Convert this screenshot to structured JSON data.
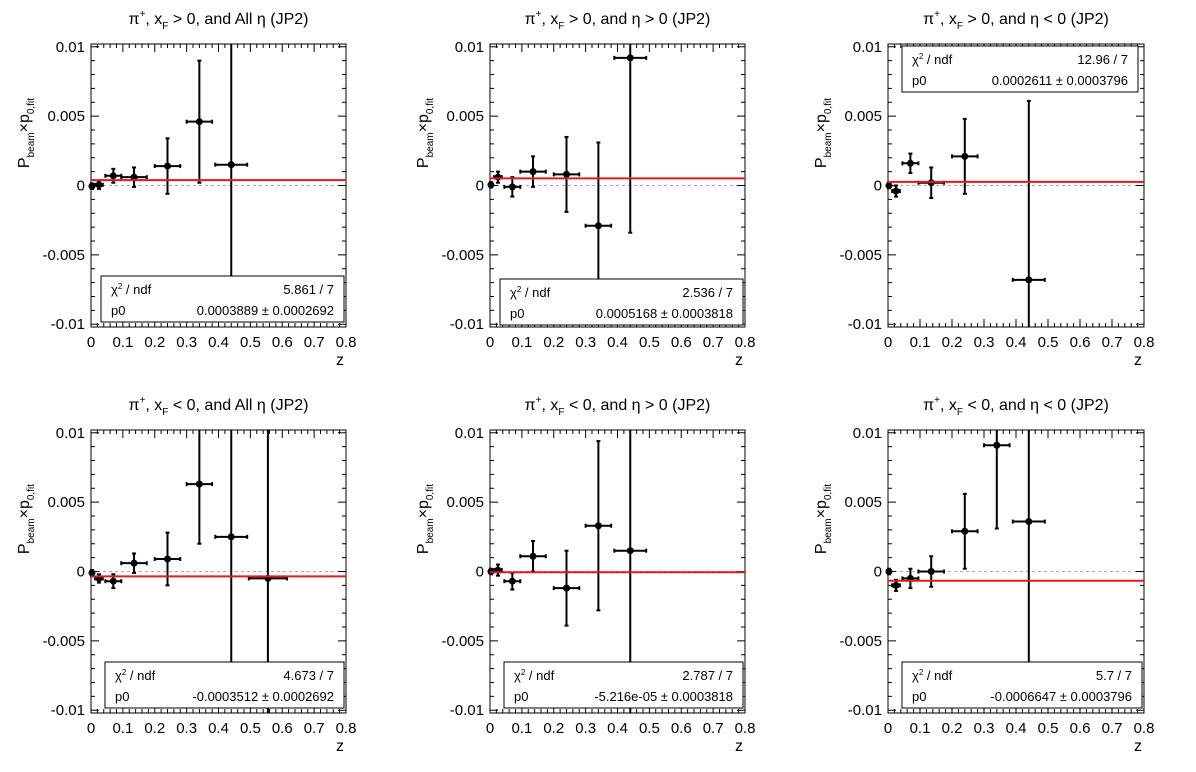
{
  "chart_data": [
    {
      "type": "scatter",
      "title_parts": [
        "π",
        "+",
        ", x",
        "F",
        " > 0, and All η (JP2)"
      ],
      "xlabel": "z",
      "ylabel_parts": [
        "P",
        "beam",
        "×p",
        "0,fit"
      ],
      "xlim": [
        0,
        0.8
      ],
      "ylim": [
        -0.0102,
        0.0102
      ],
      "x_ticks": [
        "0",
        "0.1",
        "0.2",
        "0.3",
        "0.4",
        "0.5",
        "0.6",
        "0.7",
        "0.8"
      ],
      "y_ticks": [
        "-0.01",
        "-0.005",
        "0",
        "0.005",
        "0.01"
      ],
      "points": [
        {
          "x": 0.003,
          "xerr": 0.003,
          "y": -5e-05,
          "yerr": 0.0002
        },
        {
          "x": 0.025,
          "xerr": 0.012,
          "y": 5e-05,
          "yerr": 0.0003
        },
        {
          "x": 0.07,
          "xerr": 0.025,
          "y": 0.0007,
          "yerr": 0.0005
        },
        {
          "x": 0.135,
          "xerr": 0.04,
          "y": 0.0006,
          "yerr": 0.0007
        },
        {
          "x": 0.24,
          "xerr": 0.04,
          "y": 0.0014,
          "yerr": 0.002
        },
        {
          "x": 0.34,
          "xerr": 0.04,
          "y": 0.0046,
          "yerr": 0.0044
        },
        {
          "x": 0.44,
          "xerr": 0.05,
          "y": 0.0015,
          "yerr": 0.009
        }
      ],
      "fit_value": 0.0003889,
      "stats": {
        "chi2_label_parts": [
          "χ",
          "2",
          " / ndf"
        ],
        "chi2_value": "5.861 / 7",
        "p0_label": "p0",
        "p0_value": "0.0003889 ± 0.0002692",
        "position": "bottom-right"
      }
    },
    {
      "type": "scatter",
      "title_parts": [
        "π",
        "+",
        ", x",
        "F",
        " > 0, and η > 0 (JP2)"
      ],
      "xlabel": "z",
      "ylabel_parts": [
        "P",
        "beam",
        "×p",
        "0,fit"
      ],
      "xlim": [
        0,
        0.8
      ],
      "ylim": [
        -0.0102,
        0.0102
      ],
      "x_ticks": [
        "0",
        "0.1",
        "0.2",
        "0.3",
        "0.4",
        "0.5",
        "0.6",
        "0.7",
        "0.8"
      ],
      "y_ticks": [
        "-0.01",
        "-0.005",
        "0",
        "0.005",
        "0.01"
      ],
      "points": [
        {
          "x": 0.003,
          "xerr": 0.003,
          "y": 5e-05,
          "yerr": 0.0002
        },
        {
          "x": 0.025,
          "xerr": 0.012,
          "y": 0.0006,
          "yerr": 0.0004
        },
        {
          "x": 0.07,
          "xerr": 0.025,
          "y": -0.0001,
          "yerr": 0.0007
        },
        {
          "x": 0.135,
          "xerr": 0.04,
          "y": 0.001,
          "yerr": 0.0011
        },
        {
          "x": 0.24,
          "xerr": 0.04,
          "y": 0.0008,
          "yerr": 0.0027
        },
        {
          "x": 0.34,
          "xerr": 0.04,
          "y": -0.0029,
          "yerr": 0.006
        },
        {
          "x": 0.44,
          "xerr": 0.05,
          "y": 0.0092,
          "yerr": 0.0126
        }
      ],
      "fit_value": 0.0005168,
      "stats": {
        "chi2_label_parts": [
          "χ",
          "2",
          " / ndf"
        ],
        "chi2_value": "2.536 / 7",
        "p0_label": "p0",
        "p0_value": "0.0005168 ± 0.0003818",
        "position": "bottom-right"
      }
    },
    {
      "type": "scatter",
      "title_parts": [
        "π",
        "+",
        ", x",
        "F",
        " > 0, and η < 0 (JP2)"
      ],
      "xlabel": "z",
      "ylabel_parts": [
        "P",
        "beam",
        "×p",
        "0,fit"
      ],
      "xlim": [
        0,
        0.8
      ],
      "ylim": [
        -0.0102,
        0.0102
      ],
      "x_ticks": [
        "0",
        "0.1",
        "0.2",
        "0.3",
        "0.4",
        "0.5",
        "0.6",
        "0.7",
        "0.8"
      ],
      "y_ticks": [
        "-0.01",
        "-0.005",
        "0",
        "0.005",
        "0.01"
      ],
      "points": [
        {
          "x": 0.003,
          "xerr": 0.003,
          "y": 0.0,
          "yerr": 0.0002
        },
        {
          "x": 0.025,
          "xerr": 0.012,
          "y": -0.0004,
          "yerr": 0.0004
        },
        {
          "x": 0.07,
          "xerr": 0.025,
          "y": 0.0016,
          "yerr": 0.0007
        },
        {
          "x": 0.135,
          "xerr": 0.04,
          "y": 0.0002,
          "yerr": 0.0011
        },
        {
          "x": 0.24,
          "xerr": 0.04,
          "y": 0.0021,
          "yerr": 0.0027
        },
        {
          "x": 0.44,
          "xerr": 0.05,
          "y": -0.0068,
          "yerr": 0.0129
        }
      ],
      "fit_value": 0.0002611,
      "stats": {
        "chi2_label_parts": [
          "χ",
          "2",
          " / ndf"
        ],
        "chi2_value": "12.96 / 7",
        "p0_label": "p0",
        "p0_value": "0.0002611 ± 0.0003796",
        "position": "top-right"
      }
    },
    {
      "type": "scatter",
      "title_parts": [
        "π",
        "+",
        ", x",
        "F",
        " < 0, and All η (JP2)"
      ],
      "xlabel": "z",
      "ylabel_parts": [
        "P",
        "beam",
        "×p",
        "0,fit"
      ],
      "xlim": [
        0,
        0.8
      ],
      "ylim": [
        -0.0102,
        0.0102
      ],
      "x_ticks": [
        "0",
        "0.1",
        "0.2",
        "0.3",
        "0.4",
        "0.5",
        "0.6",
        "0.7",
        "0.8"
      ],
      "y_ticks": [
        "-0.01",
        "-0.005",
        "0",
        "0.005",
        "0.01"
      ],
      "points": [
        {
          "x": 0.003,
          "xerr": 0.003,
          "y": -0.0001,
          "yerr": 0.0002
        },
        {
          "x": 0.025,
          "xerr": 0.012,
          "y": -0.0005,
          "yerr": 0.0003
        },
        {
          "x": 0.07,
          "xerr": 0.025,
          "y": -0.0007,
          "yerr": 0.0005
        },
        {
          "x": 0.135,
          "xerr": 0.04,
          "y": 0.0006,
          "yerr": 0.0007
        },
        {
          "x": 0.24,
          "xerr": 0.04,
          "y": 0.0009,
          "yerr": 0.0019
        },
        {
          "x": 0.34,
          "xerr": 0.04,
          "y": 0.0063,
          "yerr": 0.0043
        },
        {
          "x": 0.44,
          "xerr": 0.05,
          "y": 0.0025,
          "yerr": 0.0091
        },
        {
          "x": 0.555,
          "xerr": 0.06,
          "y": -0.0005,
          "yerr": 0.0132
        }
      ],
      "fit_value": -0.0003512,
      "stats": {
        "chi2_label_parts": [
          "χ",
          "2",
          " / ndf"
        ],
        "chi2_value": "4.673 / 7",
        "p0_label": "p0",
        "p0_value": "-0.0003512 ± 0.0002692",
        "position": "bottom-right"
      }
    },
    {
      "type": "scatter",
      "title_parts": [
        "π",
        "+",
        ", x",
        "F",
        " < 0, and η > 0 (JP2)"
      ],
      "xlabel": "z",
      "ylabel_parts": [
        "P",
        "beam",
        "×p",
        "0,fit"
      ],
      "xlim": [
        0,
        0.8
      ],
      "ylim": [
        -0.0102,
        0.0102
      ],
      "x_ticks": [
        "0",
        "0.1",
        "0.2",
        "0.3",
        "0.4",
        "0.5",
        "0.6",
        "0.7",
        "0.8"
      ],
      "y_ticks": [
        "-0.01",
        "-0.005",
        "0",
        "0.005",
        "0.01"
      ],
      "points": [
        {
          "x": 0.003,
          "xerr": 0.003,
          "y": 0.0,
          "yerr": 0.0002
        },
        {
          "x": 0.025,
          "xerr": 0.012,
          "y": 0.0001,
          "yerr": 0.0004
        },
        {
          "x": 0.07,
          "xerr": 0.025,
          "y": -0.0007,
          "yerr": 0.0006
        },
        {
          "x": 0.135,
          "xerr": 0.04,
          "y": 0.0011,
          "yerr": 0.0011
        },
        {
          "x": 0.24,
          "xerr": 0.04,
          "y": -0.0012,
          "yerr": 0.0027
        },
        {
          "x": 0.34,
          "xerr": 0.04,
          "y": 0.0033,
          "yerr": 0.0061
        },
        {
          "x": 0.44,
          "xerr": 0.05,
          "y": 0.0015,
          "yerr": 0.0124
        }
      ],
      "fit_value": -5.216e-05,
      "stats": {
        "chi2_label_parts": [
          "χ",
          "2",
          " / ndf"
        ],
        "chi2_value": "2.787 / 7",
        "p0_label": "p0",
        "p0_value": "-5.216e-05 ± 0.0003818",
        "position": "bottom-right"
      }
    },
    {
      "type": "scatter",
      "title_parts": [
        "π",
        "+",
        ", x",
        "F",
        " < 0, and η < 0 (JP2)"
      ],
      "xlabel": "z",
      "ylabel_parts": [
        "P",
        "beam",
        "×p",
        "0,fit"
      ],
      "xlim": [
        0,
        0.8
      ],
      "ylim": [
        -0.0102,
        0.0102
      ],
      "x_ticks": [
        "0",
        "0.1",
        "0.2",
        "0.3",
        "0.4",
        "0.5",
        "0.6",
        "0.7",
        "0.8"
      ],
      "y_ticks": [
        "-0.01",
        "-0.005",
        "0",
        "0.005",
        "0.01"
      ],
      "points": [
        {
          "x": 0.003,
          "xerr": 0.003,
          "y": 0.0,
          "yerr": 0.0002
        },
        {
          "x": 0.025,
          "xerr": 0.012,
          "y": -0.001,
          "yerr": 0.0004
        },
        {
          "x": 0.07,
          "xerr": 0.025,
          "y": -0.0005,
          "yerr": 0.0007
        },
        {
          "x": 0.135,
          "xerr": 0.04,
          "y": 0.0,
          "yerr": 0.0011
        },
        {
          "x": 0.24,
          "xerr": 0.04,
          "y": 0.0029,
          "yerr": 0.0027
        },
        {
          "x": 0.34,
          "xerr": 0.04,
          "y": 0.0091,
          "yerr": 0.006
        },
        {
          "x": 0.44,
          "xerr": 0.05,
          "y": 0.0036,
          "yerr": 0.0128
        }
      ],
      "fit_value": -0.0006647,
      "stats": {
        "chi2_label_parts": [
          "χ",
          "2",
          " / ndf"
        ],
        "chi2_value": "5.7 / 7",
        "p0_label": "p0",
        "p0_value": "-0.0006647 ± 0.0003796",
        "position": "bottom-right"
      }
    }
  ],
  "colors": {
    "fit_line": "#e31a1c",
    "zero_line": "#aaaaaa",
    "markers": "#000000"
  }
}
